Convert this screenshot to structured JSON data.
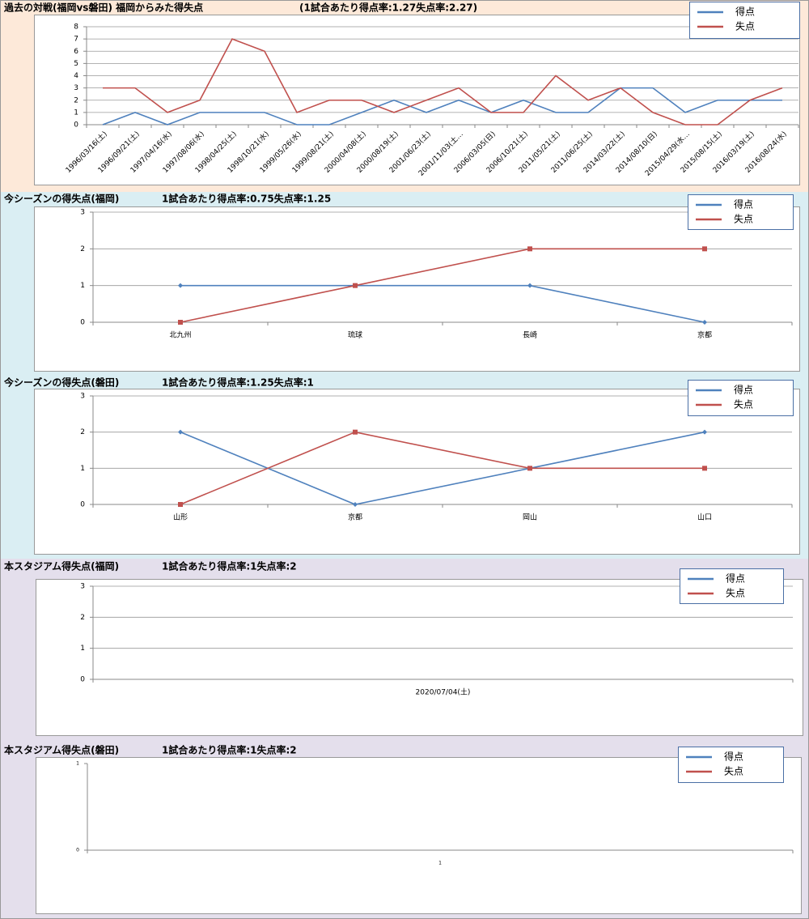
{
  "chart_data": [
    {
      "type": "line",
      "title": "過去の対戦(福岡vs磐田)  福岡からみた得失点",
      "subtitle": "(1試合あたり得点率:1.27失点率:2.27)",
      "categories": [
        "1996/03/16(土)",
        "1996/09/21(土)",
        "1997/04/16(水)",
        "1997/08/06(水)",
        "1998/04/25(土)",
        "1998/10/21(水)",
        "1999/05/26(水)",
        "1999/08/21(土)",
        "2000/04/08(土)",
        "2000/08/19(土)",
        "2001/06/23(土)",
        "2001/11/03(土…",
        "2006/03/05(日)",
        "2006/10/21(土)",
        "2011/05/21(土)",
        "2011/06/25(土)",
        "2014/03/22(土)",
        "2014/08/10(日)",
        "2015/04/29(水…",
        "2015/08/15(土)",
        "2016/03/19(土)",
        "2016/08/24(水)"
      ],
      "series": [
        {
          "name": "得点",
          "color": "#4f81bd",
          "values": [
            0,
            1,
            0,
            1,
            1,
            1,
            0,
            0,
            1,
            2,
            1,
            2,
            1,
            2,
            1,
            1,
            3,
            3,
            1,
            2,
            2,
            2
          ]
        },
        {
          "name": "失点",
          "color": "#c0504d",
          "values": [
            3,
            3,
            1,
            2,
            7,
            6,
            1,
            2,
            2,
            1,
            2,
            3,
            1,
            1,
            4,
            2,
            3,
            1,
            0,
            0,
            2,
            3
          ]
        }
      ],
      "ylim": [
        0,
        8
      ],
      "yticks": [
        0,
        1,
        2,
        3,
        4,
        5,
        6,
        7,
        8
      ],
      "grid": true,
      "legend": "top-right"
    },
    {
      "type": "line",
      "title": "今シーズンの得失点(福岡)",
      "subtitle": "1試合あたり得点率:0.75失点率:1.25",
      "categories": [
        "北九州",
        "琉球",
        "長崎",
        "京都"
      ],
      "series": [
        {
          "name": "得点",
          "color": "#4f81bd",
          "marker": "diamond",
          "values": [
            1,
            1,
            1,
            0
          ]
        },
        {
          "name": "失点",
          "color": "#c0504d",
          "marker": "square",
          "values": [
            0,
            1,
            2,
            2
          ]
        }
      ],
      "ylim": [
        0,
        3
      ],
      "yticks": [
        0,
        1,
        2,
        3
      ],
      "grid": true,
      "legend": "top-right"
    },
    {
      "type": "line",
      "title": "今シーズンの得失点(磐田)",
      "subtitle": "1試合あたり得点率:1.25失点率:1",
      "categories": [
        "山形",
        "京都",
        "岡山",
        "山口"
      ],
      "series": [
        {
          "name": "得点",
          "color": "#4f81bd",
          "marker": "diamond",
          "values": [
            2,
            0,
            1,
            2
          ]
        },
        {
          "name": "失点",
          "color": "#c0504d",
          "marker": "square",
          "values": [
            0,
            2,
            1,
            1
          ]
        }
      ],
      "ylim": [
        0,
        3
      ],
      "yticks": [
        0,
        1,
        2,
        3
      ],
      "grid": true,
      "legend": "top-right"
    },
    {
      "type": "line",
      "title": "本スタジアム得失点(福岡)",
      "subtitle": "1試合あたり得点率:1失点率:2",
      "categories": [
        "2020/07/04(土)"
      ],
      "series": [
        {
          "name": "得点",
          "color": "#4f81bd",
          "values": [
            null
          ]
        },
        {
          "name": "失点",
          "color": "#c0504d",
          "values": [
            null
          ]
        }
      ],
      "ylim": [
        0,
        3
      ],
      "yticks": [
        0,
        1,
        2,
        3
      ],
      "grid": true,
      "legend": "top-right"
    },
    {
      "type": "line",
      "title": "本スタジアム得失点(磐田)",
      "subtitle": "1試合あたり得点率:1失点率:2",
      "categories": [
        "1"
      ],
      "series": [
        {
          "name": "得点",
          "color": "#4f81bd",
          "values": [
            null
          ]
        },
        {
          "name": "失点",
          "color": "#c0504d",
          "values": [
            null
          ]
        }
      ],
      "ylim": [
        0,
        1
      ],
      "yticks": [
        0,
        1
      ],
      "grid": false,
      "legend": "top-right"
    }
  ]
}
